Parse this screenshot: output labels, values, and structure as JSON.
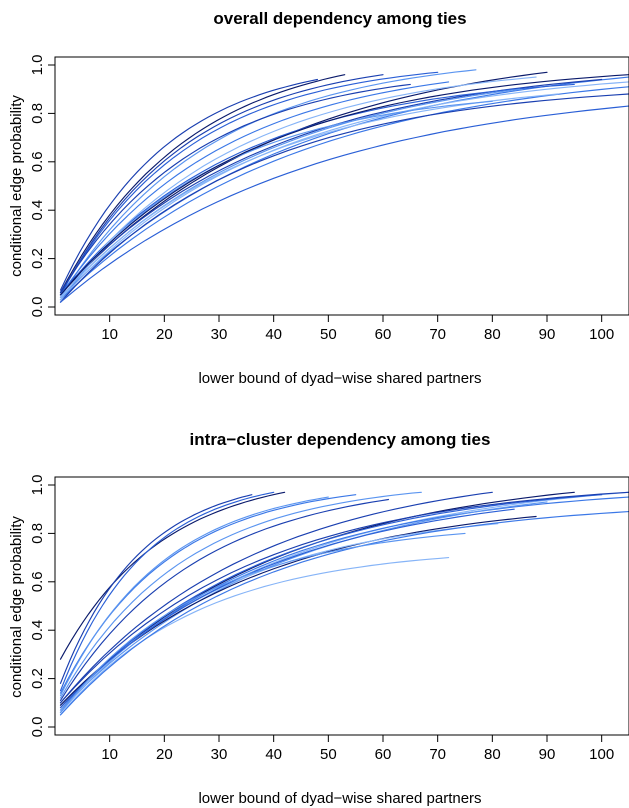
{
  "chart_data": [
    {
      "type": "line",
      "title": "overall dependency among ties",
      "xlabel": "lower bound of dyad−wise shared partners",
      "ylabel": "conditional edge probability",
      "xlim": [
        0,
        105
      ],
      "ylim": [
        0.0,
        1.0
      ],
      "xticks": [
        10,
        20,
        30,
        40,
        50,
        60,
        70,
        80,
        90,
        100
      ],
      "yticks": [
        0.0,
        0.2,
        0.4,
        0.6,
        0.8,
        1.0
      ],
      "ytick_labels": [
        "0.0",
        "0.2",
        "0.4",
        "0.6",
        "0.8",
        "1.0"
      ],
      "grid": false,
      "legend": "none",
      "colors": [
        "#0a1a6b",
        "#1a3fb0",
        "#2a5fd6",
        "#3b78e7",
        "#5b95f0",
        "#86b4f7"
      ],
      "series": [
        {
          "x": [
            1,
            53
          ],
          "values": [
            0.06,
            0.96
          ],
          "color": "#0a1a6b"
        },
        {
          "x": [
            1,
            48
          ],
          "values": [
            0.07,
            0.94
          ],
          "color": "#1a3fb0"
        },
        {
          "x": [
            1,
            60
          ],
          "values": [
            0.05,
            0.96
          ],
          "color": "#1a3fb0"
        },
        {
          "x": [
            1,
            77
          ],
          "values": [
            0.04,
            0.98
          ],
          "color": "#5b95f0"
        },
        {
          "x": [
            1,
            70
          ],
          "values": [
            0.05,
            0.97
          ],
          "color": "#2a5fd6"
        },
        {
          "x": [
            1,
            90
          ],
          "values": [
            0.05,
            0.97
          ],
          "color": "#0a1a6b"
        },
        {
          "x": [
            1,
            105
          ],
          "values": [
            0.04,
            0.95
          ],
          "color": "#3b78e7"
        },
        {
          "x": [
            1,
            100
          ],
          "values": [
            0.06,
            0.94
          ],
          "color": "#1a3fb0"
        },
        {
          "x": [
            1,
            105
          ],
          "values": [
            0.03,
            0.93
          ],
          "color": "#86b4f7"
        },
        {
          "x": [
            1,
            95
          ],
          "values": [
            0.05,
            0.92
          ],
          "color": "#2a5fd6"
        },
        {
          "x": [
            1,
            85
          ],
          "values": [
            0.04,
            0.9
          ],
          "color": "#5b95f0"
        },
        {
          "x": [
            1,
            105
          ],
          "values": [
            0.03,
            0.91
          ],
          "color": "#3b78e7"
        },
        {
          "x": [
            1,
            92
          ],
          "values": [
            0.04,
            0.88
          ],
          "color": "#86b4f7"
        },
        {
          "x": [
            1,
            80
          ],
          "values": [
            0.03,
            0.85
          ],
          "color": "#5b95f0"
        },
        {
          "x": [
            1,
            105
          ],
          "values": [
            0.02,
            0.88
          ],
          "color": "#1a3fb0"
        },
        {
          "x": [
            1,
            105
          ],
          "values": [
            0.02,
            0.83
          ],
          "color": "#2a5fd6"
        },
        {
          "x": [
            1,
            72
          ],
          "values": [
            0.05,
            0.93
          ],
          "color": "#3b78e7"
        },
        {
          "x": [
            1,
            65
          ],
          "values": [
            0.06,
            0.92
          ],
          "color": "#1a3fb0"
        },
        {
          "x": [
            1,
            88
          ],
          "values": [
            0.03,
            0.95
          ],
          "color": "#86b4f7"
        },
        {
          "x": [
            1,
            105
          ],
          "values": [
            0.05,
            0.96
          ],
          "color": "#0a1a6b"
        }
      ]
    },
    {
      "type": "line",
      "title": "intra−cluster dependency among ties",
      "xlabel": "lower bound of dyad−wise shared partners",
      "ylabel": "conditional edge probability",
      "xlim": [
        0,
        105
      ],
      "ylim": [
        0.0,
        1.0
      ],
      "xticks": [
        10,
        20,
        30,
        40,
        50,
        60,
        70,
        80,
        90,
        100
      ],
      "yticks": [
        0.0,
        0.2,
        0.4,
        0.6,
        0.8,
        1.0
      ],
      "ytick_labels": [
        "0.0",
        "0.2",
        "0.4",
        "0.6",
        "0.8",
        "1.0"
      ],
      "grid": false,
      "legend": "none",
      "colors": [
        "#0a1a6b",
        "#1a3fb0",
        "#2a5fd6",
        "#3b78e7",
        "#5b95f0",
        "#86b4f7"
      ],
      "series": [
        {
          "x": [
            1,
            42
          ],
          "values": [
            0.28,
            0.97
          ],
          "color": "#0a1a6b"
        },
        {
          "x": [
            1,
            36
          ],
          "values": [
            0.18,
            0.96
          ],
          "color": "#1a3fb0"
        },
        {
          "x": [
            1,
            40
          ],
          "values": [
            0.15,
            0.97
          ],
          "color": "#2a5fd6"
        },
        {
          "x": [
            1,
            55
          ],
          "values": [
            0.14,
            0.96
          ],
          "color": "#3b78e7"
        },
        {
          "x": [
            1,
            67
          ],
          "values": [
            0.12,
            0.97
          ],
          "color": "#5b95f0"
        },
        {
          "x": [
            1,
            80
          ],
          "values": [
            0.1,
            0.97
          ],
          "color": "#1a3fb0"
        },
        {
          "x": [
            1,
            95
          ],
          "values": [
            0.08,
            0.97
          ],
          "color": "#0a1a6b"
        },
        {
          "x": [
            1,
            105
          ],
          "values": [
            0.09,
            0.97
          ],
          "color": "#86b4f7"
        },
        {
          "x": [
            1,
            100
          ],
          "values": [
            0.07,
            0.96
          ],
          "color": "#2a5fd6"
        },
        {
          "x": [
            1,
            105
          ],
          "values": [
            0.06,
            0.95
          ],
          "color": "#3b78e7"
        },
        {
          "x": [
            1,
            90
          ],
          "values": [
            0.07,
            0.93
          ],
          "color": "#5b95f0"
        },
        {
          "x": [
            1,
            88
          ],
          "values": [
            0.09,
            0.87
          ],
          "color": "#0a1a6b"
        },
        {
          "x": [
            1,
            81
          ],
          "values": [
            0.06,
            0.84
          ],
          "color": "#86b4f7"
        },
        {
          "x": [
            1,
            72
          ],
          "values": [
            0.05,
            0.7
          ],
          "color": "#86b4f7"
        },
        {
          "x": [
            1,
            105
          ],
          "values": [
            0.05,
            0.89
          ],
          "color": "#3b78e7"
        },
        {
          "x": [
            1,
            84
          ],
          "values": [
            0.08,
            0.9
          ],
          "color": "#2a5fd6"
        },
        {
          "x": [
            1,
            61
          ],
          "values": [
            0.11,
            0.94
          ],
          "color": "#1a3fb0"
        },
        {
          "x": [
            1,
            50
          ],
          "values": [
            0.13,
            0.95
          ],
          "color": "#5b95f0"
        },
        {
          "x": [
            1,
            75
          ],
          "values": [
            0.06,
            0.8
          ],
          "color": "#5b95f0"
        },
        {
          "x": [
            1,
            105
          ],
          "values": [
            0.1,
            0.97
          ],
          "color": "#1a3fb0"
        }
      ]
    }
  ]
}
